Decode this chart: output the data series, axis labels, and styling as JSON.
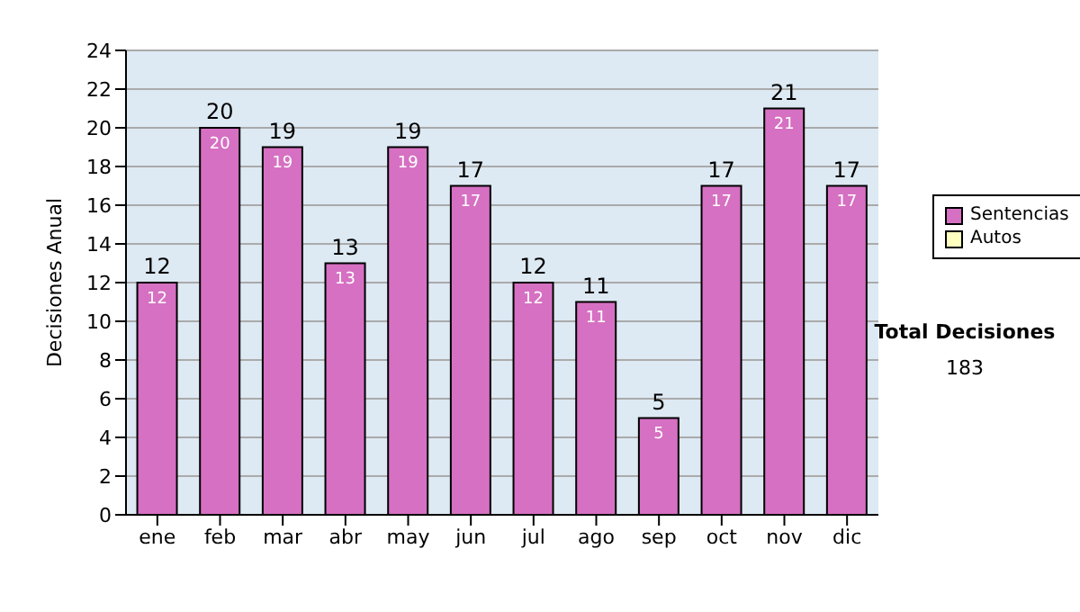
{
  "chart_data": {
    "type": "bar",
    "ylabel": "Decisiones Anual",
    "categories": [
      "ene",
      "feb",
      "mar",
      "abr",
      "may",
      "jun",
      "jul",
      "ago",
      "sep",
      "oct",
      "nov",
      "dic"
    ],
    "series": [
      {
        "name": "Sentencias",
        "color": "#d670c2",
        "values": [
          12,
          20,
          19,
          13,
          19,
          17,
          12,
          11,
          5,
          17,
          21,
          17
        ],
        "value_labels": [
          "12",
          "20",
          "19",
          "13",
          "19",
          "17",
          "12",
          "11",
          "5",
          "17",
          "21",
          "17"
        ]
      },
      {
        "name": "Autos",
        "color": "#ffffc0",
        "values": [
          null,
          null,
          null,
          null,
          null,
          null,
          null,
          null,
          null,
          null,
          null,
          null
        ]
      }
    ],
    "ylim": [
      0,
      24
    ],
    "yticks": [
      0,
      2,
      4,
      6,
      8,
      10,
      12,
      14,
      16,
      18,
      20,
      22,
      24
    ],
    "grid": "y",
    "legend": "right",
    "totals": [
      "12",
      "20",
      "19",
      "13",
      "19",
      "17",
      "12",
      "11",
      "5",
      "17",
      "21",
      "17"
    ],
    "annotations": [
      "Total Decisiones",
      "183"
    ]
  }
}
